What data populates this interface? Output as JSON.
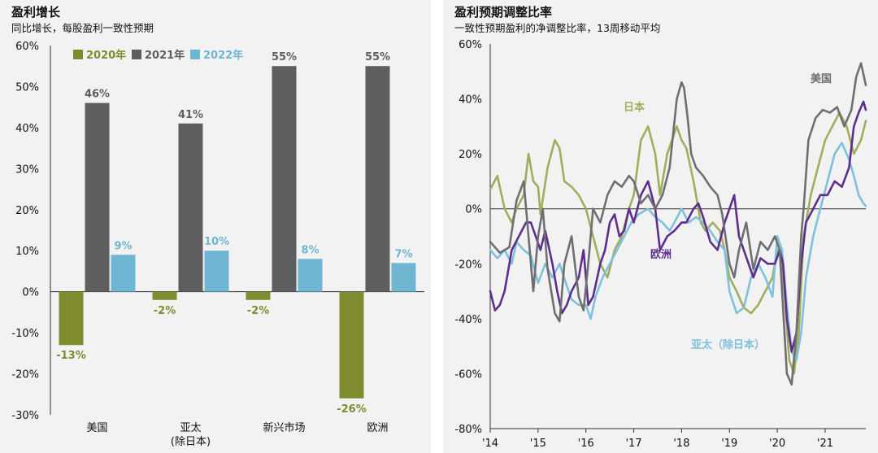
{
  "left_chart": {
    "title": "盈利增长",
    "subtitle": "同比增长，每股盈利一致性预期"
  },
  "right_chart": {
    "title": "盈利预期调整比率",
    "subtitle": "一致性预期盈利的净调整比率，13周移动平均"
  },
  "colors": {
    "s2020": "#7f8b2e",
    "s2021": "#5e5e60",
    "s2022": "#6fb6d2",
    "us": "#6f6f71",
    "japan": "#a0ad5a",
    "europe": "#5d2e8e",
    "asia": "#7fc1dc",
    "panel_bg": "#f2f2f3"
  },
  "chart_data": [
    {
      "type": "bar",
      "categories": [
        "美国",
        "亚太\n(除日本)",
        "新兴市场",
        "欧洲"
      ],
      "series": [
        {
          "name": "2020年",
          "values": [
            -13,
            -2,
            -2,
            -26
          ],
          "labels": [
            "-13%",
            "-2%",
            "-2%",
            "-26%"
          ]
        },
        {
          "name": "2021年",
          "values": [
            46,
            41,
            55,
            55
          ],
          "labels": [
            "46%",
            "41%",
            "55%",
            "55%"
          ]
        },
        {
          "name": "2022年",
          "values": [
            9,
            10,
            8,
            7
          ],
          "labels": [
            "9%",
            "10%",
            "8%",
            "7%"
          ]
        }
      ],
      "ylim": [
        -30,
        60
      ],
      "yticks": [
        -30,
        -20,
        -10,
        0,
        10,
        20,
        30,
        40,
        50,
        60
      ],
      "ytick_labels": [
        "-30%",
        "-20%",
        "-10%",
        "0%",
        "10%",
        "20%",
        "30%",
        "40%",
        "50%",
        "60%"
      ],
      "legend": "top"
    },
    {
      "type": "line",
      "xlim": [
        2014,
        2021.85
      ],
      "ylim": [
        -80,
        60
      ],
      "yticks": [
        -80,
        -60,
        -40,
        -20,
        0,
        20,
        40,
        60
      ],
      "ytick_labels": [
        "-80%",
        "-60%",
        "-40%",
        "-20%",
        "0%",
        "20%",
        "40%",
        "60%"
      ],
      "xticks": [
        2014,
        2015,
        2016,
        2017,
        2018,
        2019,
        2020,
        2021
      ],
      "xtick_labels": [
        "'14",
        "'15",
        "'16",
        "'17",
        "'18",
        "'19",
        "'20",
        "'21"
      ],
      "series": [
        {
          "name": "美国",
          "x": [
            2014,
            2014.2,
            2014.4,
            2014.55,
            2014.7,
            2014.8,
            2014.9,
            2015.0,
            2015.1,
            2015.2,
            2015.35,
            2015.45,
            2015.55,
            2015.7,
            2015.85,
            2015.95,
            2016.05,
            2016.15,
            2016.3,
            2016.45,
            2016.6,
            2016.75,
            2016.9,
            2017.0,
            2017.15,
            2017.3,
            2017.45,
            2017.6,
            2017.75,
            2017.9,
            2018.0,
            2018.05,
            2018.12,
            2018.2,
            2018.3,
            2018.45,
            2018.6,
            2018.75,
            2018.85,
            2019.0,
            2019.1,
            2019.2,
            2019.35,
            2019.5,
            2019.65,
            2019.8,
            2019.95,
            2020.05,
            2020.1,
            2020.2,
            2020.3,
            2020.4,
            2020.5,
            2020.55,
            2020.65,
            2020.8,
            2020.95,
            2021.1,
            2021.25,
            2021.4,
            2021.55,
            2021.65,
            2021.75,
            2021.85
          ],
          "y": [
            -12,
            -16,
            -14,
            3,
            10,
            -10,
            -30,
            -10,
            0,
            -22,
            -38,
            -41,
            -20,
            -10,
            -32,
            -37,
            -20,
            0,
            -5,
            5,
            10,
            8,
            12,
            10,
            2,
            5,
            0,
            5,
            15,
            40,
            46,
            44,
            34,
            20,
            15,
            12,
            8,
            5,
            -2,
            -20,
            -25,
            -15,
            -5,
            -22,
            -12,
            -15,
            -10,
            -15,
            -30,
            -60,
            -64,
            -45,
            -10,
            0,
            25,
            33,
            36,
            35,
            37,
            30,
            36,
            48,
            53,
            45
          ]
        },
        {
          "name": "日本",
          "x": [
            2014,
            2014.15,
            2014.3,
            2014.45,
            2014.55,
            2014.7,
            2014.8,
            2014.9,
            2015.0,
            2015.05,
            2015.2,
            2015.35,
            2015.45,
            2015.55,
            2015.7,
            2015.85,
            2016.0,
            2016.15,
            2016.3,
            2016.45,
            2016.6,
            2016.75,
            2016.9,
            2017.0,
            2017.15,
            2017.3,
            2017.45,
            2017.55,
            2017.7,
            2017.8,
            2017.9,
            2018.0,
            2018.1,
            2018.25,
            2018.4,
            2018.5,
            2018.65,
            2018.8,
            2018.9,
            2019.0,
            2019.15,
            2019.3,
            2019.45,
            2019.6,
            2019.75,
            2019.9,
            2020.0,
            2020.05,
            2020.15,
            2020.25,
            2020.35,
            2020.45,
            2020.55,
            2020.7,
            2020.85,
            2021.0,
            2021.15,
            2021.3,
            2021.45,
            2021.6,
            2021.75,
            2021.85
          ],
          "y": [
            7,
            12,
            0,
            -5,
            0,
            5,
            20,
            10,
            8,
            -2,
            15,
            25,
            22,
            10,
            8,
            5,
            0,
            -10,
            -20,
            -25,
            -15,
            -10,
            0,
            5,
            25,
            30,
            20,
            5,
            20,
            25,
            30,
            25,
            22,
            10,
            -5,
            -8,
            -5,
            -8,
            -15,
            -25,
            -30,
            -36,
            -38,
            -35,
            -30,
            -25,
            -15,
            -15,
            -30,
            -55,
            -60,
            -45,
            -10,
            5,
            15,
            25,
            30,
            35,
            30,
            20,
            25,
            32
          ]
        },
        {
          "name": "欧洲",
          "x": [
            2014,
            2014.1,
            2014.2,
            2014.3,
            2014.45,
            2014.6,
            2014.75,
            2014.85,
            2014.95,
            2015.05,
            2015.15,
            2015.3,
            2015.4,
            2015.5,
            2015.6,
            2015.7,
            2015.85,
            2015.95,
            2016.05,
            2016.15,
            2016.3,
            2016.4,
            2016.5,
            2016.6,
            2016.7,
            2016.8,
            2016.9,
            2017.0,
            2017.15,
            2017.3,
            2017.45,
            2017.55,
            2017.7,
            2017.85,
            2018.0,
            2018.1,
            2018.25,
            2018.35,
            2018.45,
            2018.6,
            2018.75,
            2018.9,
            2019.0,
            2019.1,
            2019.2,
            2019.3,
            2019.4,
            2019.5,
            2019.65,
            2019.8,
            2019.95,
            2020.05,
            2020.12,
            2020.2,
            2020.3,
            2020.4,
            2020.5,
            2020.6,
            2020.75,
            2020.9,
            2021.05,
            2021.2,
            2021.35,
            2021.5,
            2021.6,
            2021.7,
            2021.8,
            2021.85
          ],
          "y": [
            -30,
            -37,
            -35,
            -30,
            -15,
            -10,
            -5,
            -5,
            -10,
            -15,
            -8,
            -20,
            -30,
            -38,
            -35,
            -30,
            -25,
            -15,
            -35,
            -32,
            -20,
            -15,
            -5,
            -2,
            -10,
            -8,
            0,
            -5,
            5,
            10,
            0,
            -15,
            -10,
            -8,
            -5,
            -5,
            0,
            2,
            -3,
            -12,
            -15,
            -5,
            0,
            5,
            -10,
            -15,
            -20,
            -25,
            -18,
            -20,
            -20,
            -15,
            -20,
            -40,
            -52,
            -45,
            -20,
            -5,
            0,
            5,
            5,
            10,
            8,
            15,
            30,
            35,
            39,
            36
          ]
        },
        {
          "name": "亚太（除日本）",
          "x": [
            2014,
            2014.15,
            2014.3,
            2014.45,
            2014.55,
            2014.7,
            2014.85,
            2015.0,
            2015.15,
            2015.3,
            2015.45,
            2015.6,
            2015.7,
            2015.85,
            2016.0,
            2016.1,
            2016.2,
            2016.35,
            2016.5,
            2016.65,
            2016.8,
            2016.95,
            2017.1,
            2017.3,
            2017.45,
            2017.6,
            2017.75,
            2017.85,
            2018.0,
            2018.15,
            2018.3,
            2018.45,
            2018.6,
            2018.75,
            2018.9,
            2019.0,
            2019.15,
            2019.3,
            2019.45,
            2019.6,
            2019.75,
            2019.9,
            2020.0,
            2020.1,
            2020.2,
            2020.3,
            2020.4,
            2020.5,
            2020.6,
            2020.75,
            2020.9,
            2021.05,
            2021.2,
            2021.35,
            2021.5,
            2021.6,
            2021.7,
            2021.8,
            2021.85
          ],
          "y": [
            -15,
            -18,
            -15,
            -20,
            -12,
            -15,
            -17,
            -27,
            -20,
            -25,
            -20,
            -28,
            -33,
            -35,
            -35,
            -40,
            -32,
            -25,
            -20,
            -15,
            -10,
            -5,
            -2,
            0,
            -3,
            -5,
            -8,
            -5,
            0,
            -5,
            -3,
            -5,
            -8,
            -12,
            -15,
            -30,
            -38,
            -36,
            -25,
            -20,
            -25,
            -32,
            -10,
            -15,
            -35,
            -52,
            -55,
            -45,
            -25,
            -10,
            0,
            10,
            20,
            24,
            18,
            12,
            5,
            2,
            1
          ]
        }
      ],
      "annotations": [
        "美国",
        "日本",
        "欧洲",
        "亚太（除日本）"
      ]
    }
  ]
}
